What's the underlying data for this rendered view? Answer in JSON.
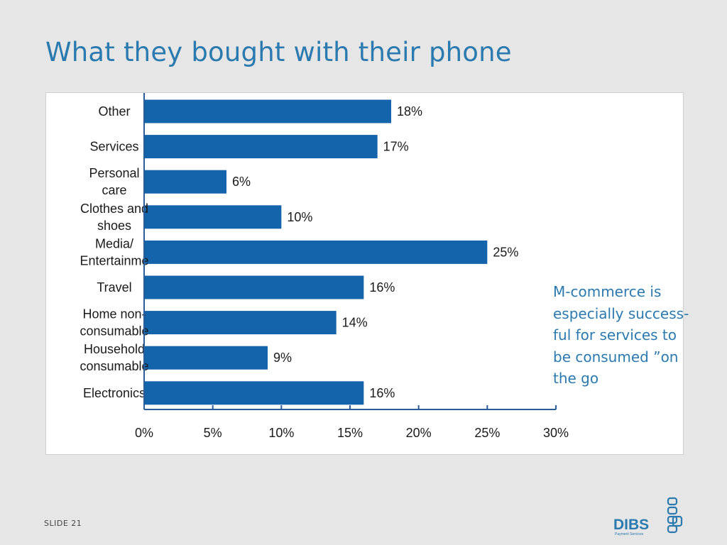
{
  "slide": {
    "title": "What they bought with their phone",
    "note": "M-commerce is especially success-ful for services to be consumed ”on the go",
    "slide_number": "SLIDE 21",
    "logo_text": "DIBS",
    "logo_subtext": "Payment Services",
    "accent_color": "#2a7ab0"
  },
  "chart_data": {
    "type": "bar",
    "orientation": "horizontal",
    "categories": [
      [
        "Other"
      ],
      [
        "Services"
      ],
      [
        "Personal",
        "care"
      ],
      [
        "Clothes and",
        "shoes"
      ],
      [
        "Media/",
        "Entertainme"
      ],
      [
        "Travel"
      ],
      [
        "Home non-",
        "consumable"
      ],
      [
        "Household",
        "consumable"
      ],
      [
        "Electronics"
      ]
    ],
    "values": [
      18,
      17,
      6,
      10,
      25,
      16,
      14,
      9,
      16
    ],
    "value_labels": [
      "18%",
      "17%",
      "6%",
      "10%",
      "25%",
      "16%",
      "14%",
      "9%",
      "16%"
    ],
    "xlim": [
      0,
      30
    ],
    "xticks": [
      0,
      5,
      10,
      15,
      20,
      25,
      30
    ],
    "xtick_labels": [
      "0%",
      "5%",
      "10%",
      "15%",
      "20%",
      "25%",
      "30%"
    ],
    "bar_color": "#1464ac",
    "grid": false,
    "legend": "none"
  }
}
